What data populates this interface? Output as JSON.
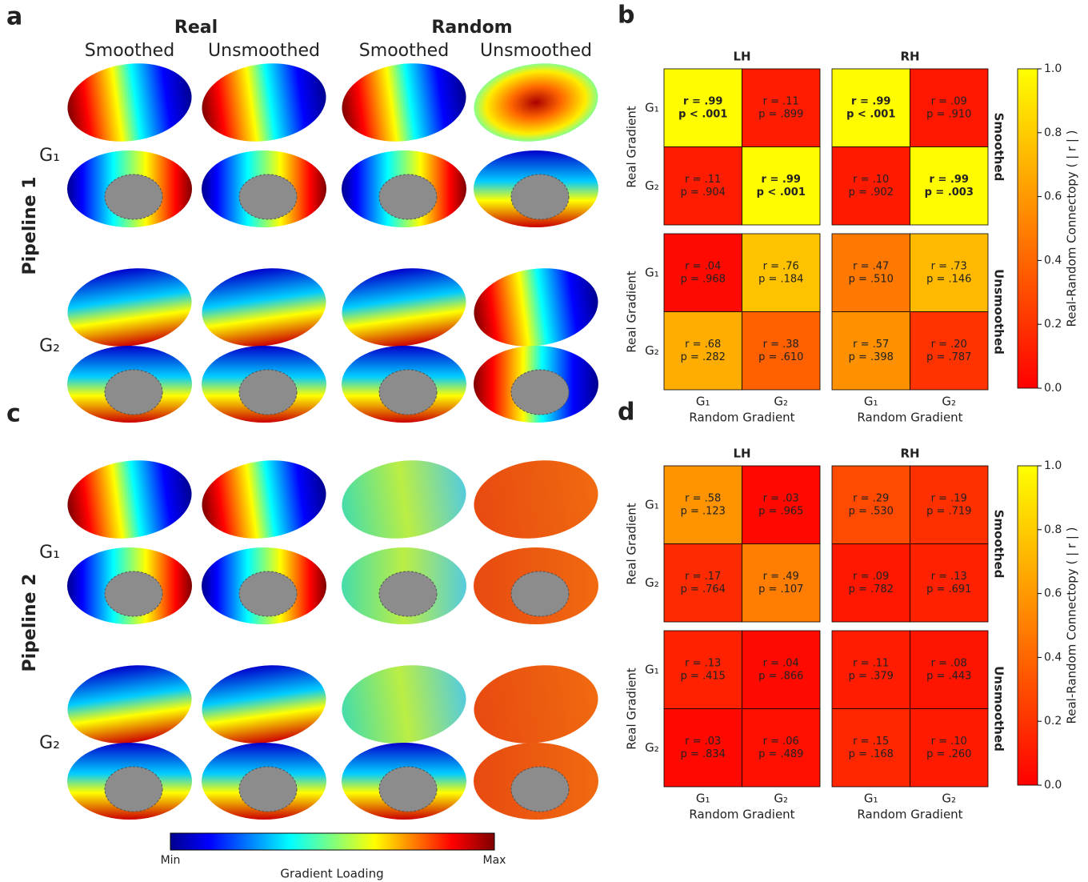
{
  "figure": {
    "panels": [
      {
        "label": "a",
        "pipeline": "Pipeline 1"
      },
      {
        "label": "c",
        "pipeline": "Pipeline 2"
      }
    ],
    "groups": [
      "Real",
      "Random"
    ],
    "conditions": [
      "Smoothed",
      "Unsmoothed",
      "Smoothed",
      "Unsmoothed"
    ],
    "gradients": [
      "G₁",
      "G₂"
    ],
    "colorbar": {
      "min_label": "Min",
      "max_label": "Max",
      "label": "Gradient Loading"
    }
  },
  "chart_data": [
    {
      "type": "heatmap",
      "panel_label": "b",
      "columns": [
        "LH",
        "RH"
      ],
      "row_groups": [
        "Smoothed",
        "Unsmoothed"
      ],
      "y_label": "Real Gradient",
      "x_label": "Random Gradient",
      "row_ticks": [
        "G₁",
        "G₂"
      ],
      "col_ticks": [
        "G₁",
        "G₂"
      ],
      "colormap": "autumn",
      "clim": [
        0,
        1
      ],
      "cticks": [
        {
          "value": 0,
          "label": "0.0"
        },
        {
          "value": 0.2,
          "label": "0.2"
        },
        {
          "value": 0.4,
          "label": "0.4"
        },
        {
          "value": 0.6,
          "label": "0.6"
        },
        {
          "value": 0.8,
          "label": "0.8"
        },
        {
          "value": 1,
          "label": "1.0"
        }
      ],
      "colorbar_label": "Real-Random Connectopy ( | r | )",
      "blocks": [
        [
          {
            "values": [
              [
                0.99,
                0.11
              ],
              [
                0.11,
                0.99
              ]
            ],
            "value_labels": [
              [
                "r = .99",
                "r = .11"
              ],
              [
                "r = .11",
                "r = .99"
              ]
            ],
            "p_labels": [
              [
                "p < .001",
                "p = .899"
              ],
              [
                "p = .904",
                "p < .001"
              ]
            ],
            "bold": [
              [
                true,
                false
              ],
              [
                false,
                true
              ]
            ]
          },
          {
            "values": [
              [
                0.99,
                0.09
              ],
              [
                0.1,
                0.99
              ]
            ],
            "value_labels": [
              [
                "r = .99",
                "r = .09"
              ],
              [
                "r = .10",
                "r = .99"
              ]
            ],
            "p_labels": [
              [
                "p < .001",
                "p = .910"
              ],
              [
                "p = .902",
                "p = .003"
              ]
            ],
            "bold": [
              [
                true,
                false
              ],
              [
                false,
                true
              ]
            ]
          }
        ],
        [
          {
            "values": [
              [
                0.04,
                0.76
              ],
              [
                0.68,
                0.38
              ]
            ],
            "value_labels": [
              [
                "r = .04",
                "r = .76"
              ],
              [
                "r = .68",
                "r = .38"
              ]
            ],
            "p_labels": [
              [
                "p = .968",
                "p = .184"
              ],
              [
                "p = .282",
                "p = .610"
              ]
            ],
            "bold": [
              [
                false,
                false
              ],
              [
                false,
                false
              ]
            ]
          },
          {
            "values": [
              [
                0.47,
                0.73
              ],
              [
                0.57,
                0.2
              ]
            ],
            "value_labels": [
              [
                "r = .47",
                "r = .73"
              ],
              [
                "r = .57",
                "r = .20"
              ]
            ],
            "p_labels": [
              [
                "p = .510",
                "p = .146"
              ],
              [
                "p = .398",
                "p = .787"
              ]
            ],
            "bold": [
              [
                false,
                false
              ],
              [
                false,
                false
              ]
            ]
          }
        ]
      ]
    },
    {
      "type": "heatmap",
      "panel_label": "d",
      "columns": [
        "LH",
        "RH"
      ],
      "row_groups": [
        "Smoothed",
        "Unsmoothed"
      ],
      "y_label": "Real Gradient",
      "x_label": "Random Gradient",
      "row_ticks": [
        "G₁",
        "G₂"
      ],
      "col_ticks": [
        "G₁",
        "G₂"
      ],
      "colormap": "autumn",
      "clim": [
        0,
        1
      ],
      "cticks": [
        {
          "value": 0,
          "label": "0.0"
        },
        {
          "value": 0.2,
          "label": "0.2"
        },
        {
          "value": 0.4,
          "label": "0.4"
        },
        {
          "value": 0.6,
          "label": "0.6"
        },
        {
          "value": 0.8,
          "label": "0.8"
        },
        {
          "value": 1,
          "label": "1.0"
        }
      ],
      "colorbar_label": "Real-Random Connectopy ( | r | )",
      "blocks": [
        [
          {
            "values": [
              [
                0.58,
                0.03
              ],
              [
                0.17,
                0.49
              ]
            ],
            "value_labels": [
              [
                "r = .58",
                "r = .03"
              ],
              [
                "r = .17",
                "r = .49"
              ]
            ],
            "p_labels": [
              [
                "p = .123",
                "p = .965"
              ],
              [
                "p = .764",
                "p = .107"
              ]
            ],
            "bold": [
              [
                false,
                false
              ],
              [
                false,
                false
              ]
            ]
          },
          {
            "values": [
              [
                0.29,
                0.19
              ],
              [
                0.09,
                0.13
              ]
            ],
            "value_labels": [
              [
                "r = .29",
                "r = .19"
              ],
              [
                "r = .09",
                "r = .13"
              ]
            ],
            "p_labels": [
              [
                "p = .530",
                "p = .719"
              ],
              [
                "p = .782",
                "p = .691"
              ]
            ],
            "bold": [
              [
                false,
                false
              ],
              [
                false,
                false
              ]
            ]
          }
        ],
        [
          {
            "values": [
              [
                0.13,
                0.04
              ],
              [
                0.03,
                0.06
              ]
            ],
            "value_labels": [
              [
                "r = .13",
                "r = .04"
              ],
              [
                "r = .03",
                "r = .06"
              ]
            ],
            "p_labels": [
              [
                "p = .415",
                "p = .866"
              ],
              [
                "p = .834",
                "p = .489"
              ]
            ],
            "bold": [
              [
                false,
                false
              ],
              [
                false,
                false
              ]
            ]
          },
          {
            "values": [
              [
                0.11,
                0.08
              ],
              [
                0.15,
                0.1
              ]
            ],
            "value_labels": [
              [
                "r = .11",
                "r = .08"
              ],
              [
                "r = .15",
                "r = .10"
              ]
            ],
            "p_labels": [
              [
                "p = .379",
                "p = .443"
              ],
              [
                "p = .168",
                "p = .260"
              ]
            ],
            "bold": [
              [
                false,
                false
              ],
              [
                false,
                false
              ]
            ]
          }
        ]
      ]
    }
  ]
}
